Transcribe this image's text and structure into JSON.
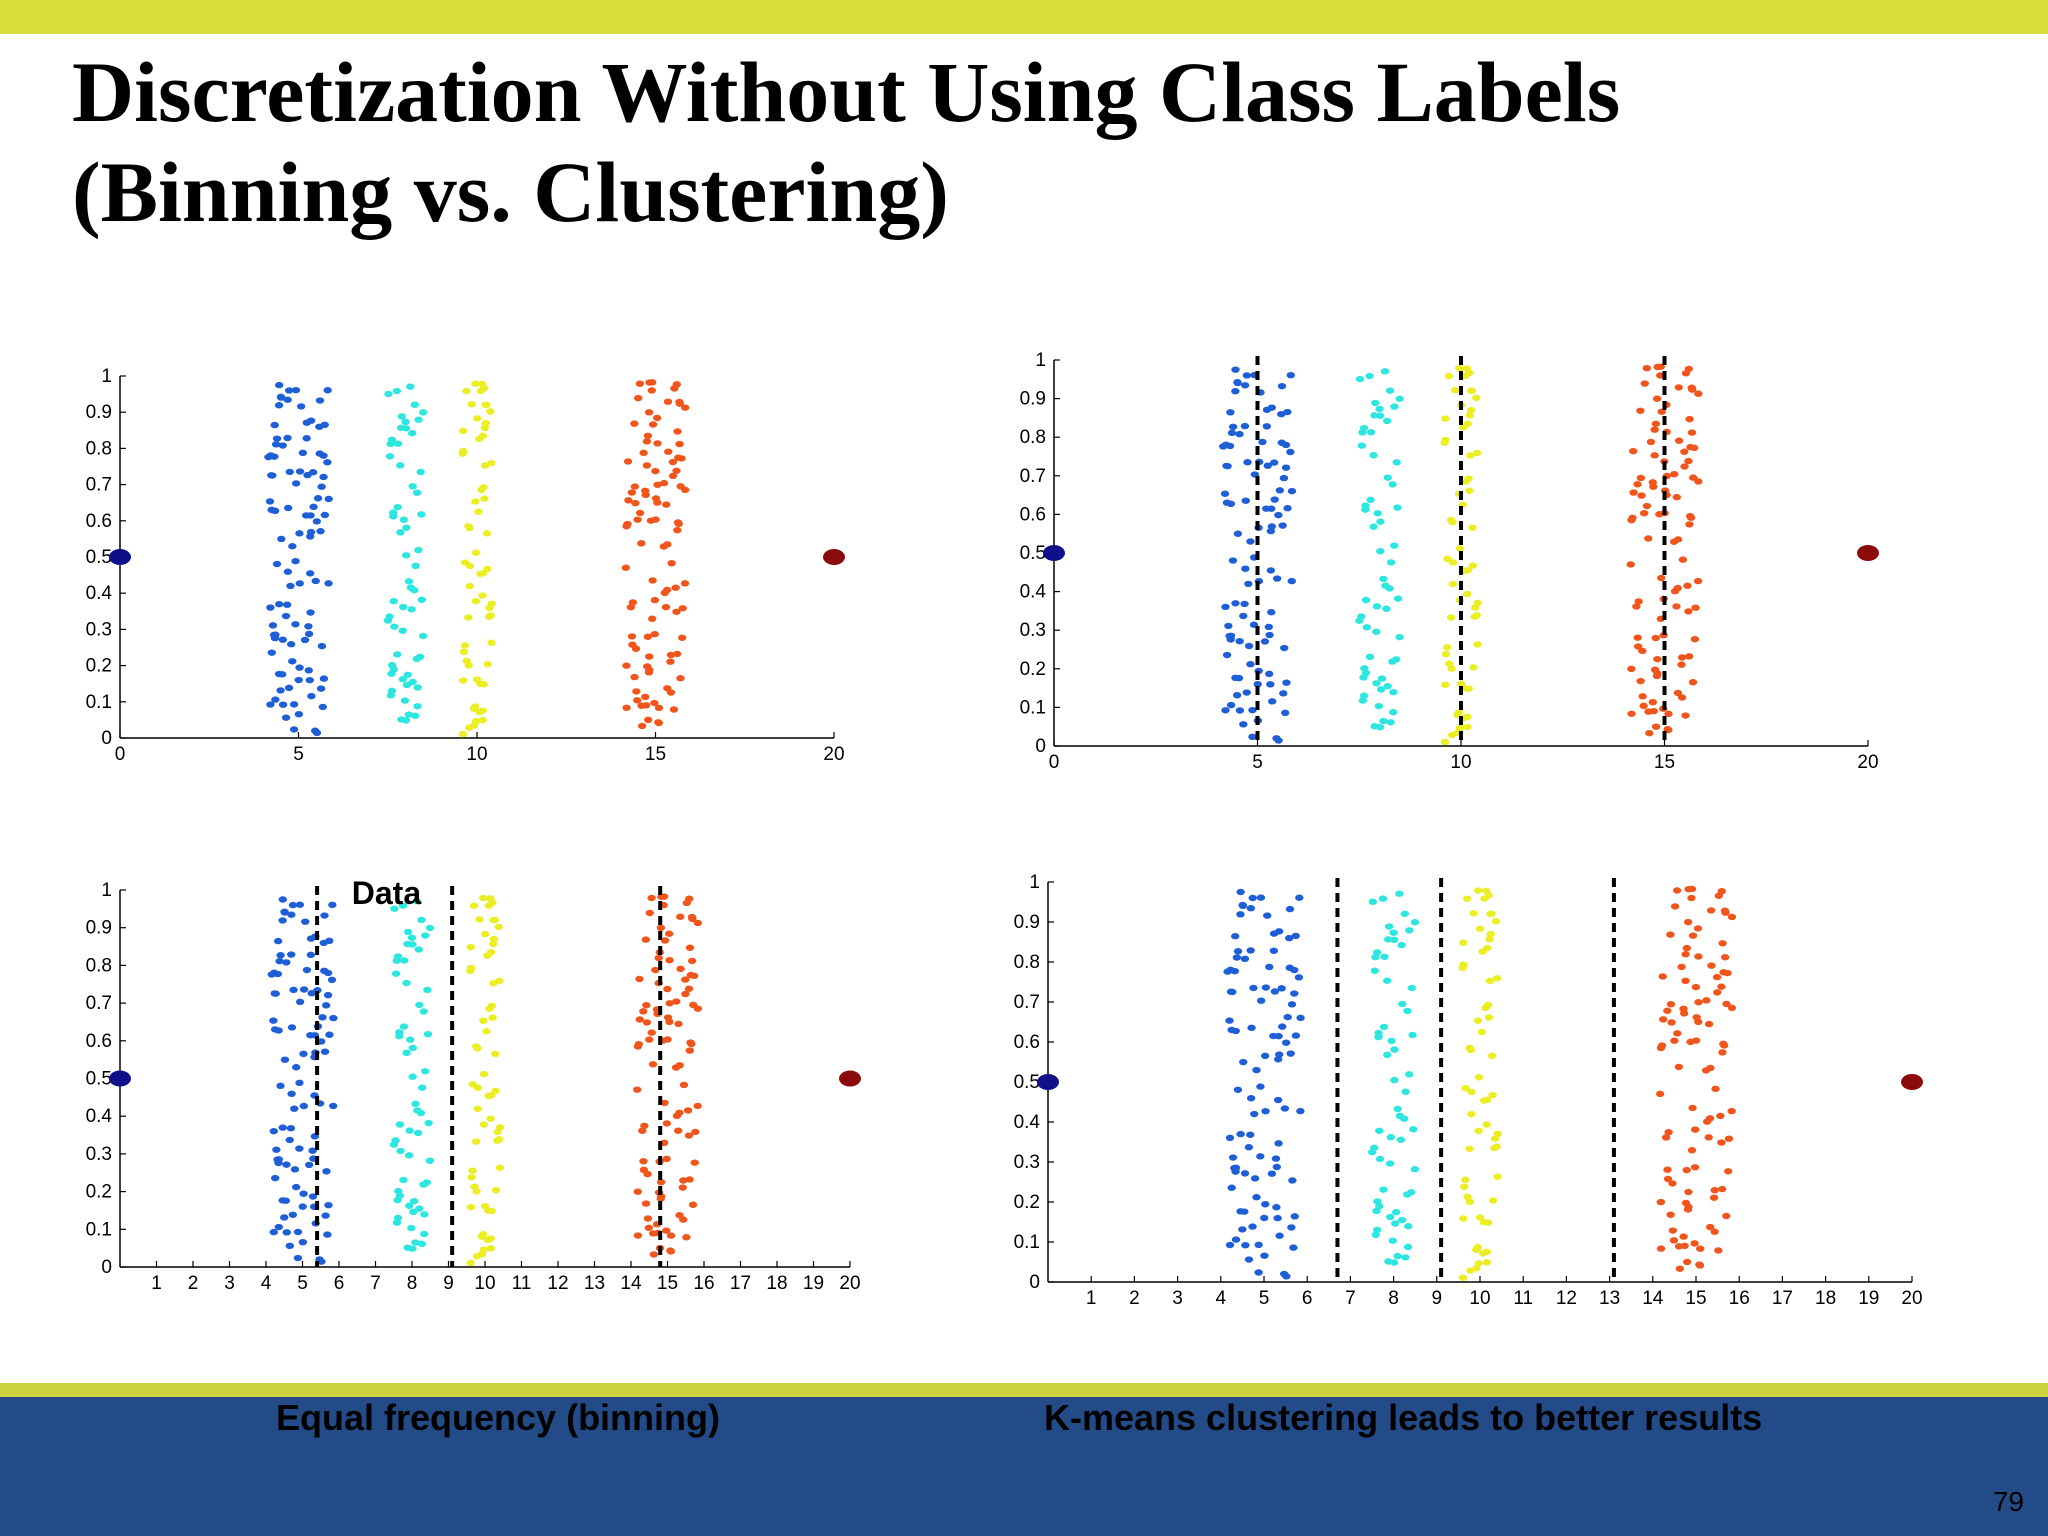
{
  "slide": {
    "title_line1": "Discretization Without Using Class Labels",
    "title_line2": "(Binning vs. Clustering)",
    "caption_left": "Equal frequency (binning)",
    "caption_right": "K-means clustering leads to better results",
    "page_number": "79",
    "colors": {
      "top_bar": "#d9df3a",
      "footer_line": "#cdd440",
      "footer_bg": "#234b87"
    }
  },
  "chart_data": [
    {
      "type": "scatter",
      "annotation": "",
      "xlim": [
        0,
        20
      ],
      "ylim": [
        0,
        1
      ],
      "xticks": [
        0,
        5,
        10,
        15,
        20
      ],
      "yticks": [
        0,
        0.1,
        0.2,
        0.3,
        0.4,
        0.5,
        0.6,
        0.7,
        0.8,
        0.9,
        1
      ],
      "cutpoints": [],
      "series": [
        {
          "color": "#1f5fd6",
          "points": "cluster",
          "x_center": 5,
          "x_spread": 1,
          "count": 100
        },
        {
          "color": "#2ee6e0",
          "points": "cluster",
          "x_center": 8,
          "x_spread": 0.6,
          "count": 60
        },
        {
          "color": "#ebee22",
          "points": "cluster",
          "x_center": 10,
          "x_spread": 0.5,
          "count": 60
        },
        {
          "color": "#f0561c",
          "points": "cluster",
          "x_center": 15,
          "x_spread": 1,
          "count": 100
        },
        {
          "color": "#0f0f8a",
          "x": [
            0
          ],
          "y": [
            0.5
          ],
          "outlier": true
        },
        {
          "color": "#8b0a0a",
          "x": [
            20
          ],
          "y": [
            0.5
          ],
          "outlier": true
        }
      ]
    },
    {
      "type": "scatter",
      "annotation": "",
      "xlim": [
        0,
        20
      ],
      "ylim": [
        0,
        1
      ],
      "xticks": [
        0,
        5,
        10,
        15,
        20
      ],
      "yticks": [
        0,
        0.1,
        0.2,
        0.3,
        0.4,
        0.5,
        0.6,
        0.7,
        0.8,
        0.9,
        1
      ],
      "cutpoints": [
        5,
        10,
        15
      ],
      "series": [
        {
          "color": "#1f5fd6",
          "points": "cluster",
          "x_center": 5,
          "x_spread": 1,
          "count": 100
        },
        {
          "color": "#2ee6e0",
          "points": "cluster",
          "x_center": 8,
          "x_spread": 0.6,
          "count": 60
        },
        {
          "color": "#ebee22",
          "points": "cluster",
          "x_center": 10,
          "x_spread": 0.5,
          "count": 60
        },
        {
          "color": "#f0561c",
          "points": "cluster",
          "x_center": 15,
          "x_spread": 1,
          "count": 100
        },
        {
          "color": "#0f0f8a",
          "x": [
            0
          ],
          "y": [
            0.5
          ],
          "outlier": true
        },
        {
          "color": "#8b0a0a",
          "x": [
            20
          ],
          "y": [
            0.5
          ],
          "outlier": true
        }
      ]
    },
    {
      "type": "scatter",
      "annotation": "Data",
      "xlim": [
        0,
        20
      ],
      "ylim": [
        0,
        1
      ],
      "xticks": [
        1,
        2,
        3,
        4,
        5,
        6,
        7,
        8,
        9,
        10,
        11,
        12,
        13,
        14,
        15,
        16,
        17,
        18,
        19,
        20
      ],
      "yticks": [
        0,
        0.1,
        0.2,
        0.3,
        0.4,
        0.5,
        0.6,
        0.7,
        0.8,
        0.9,
        1
      ],
      "cutpoints": [
        5.4,
        9.1,
        14.8
      ],
      "series": [
        {
          "color": "#1f5fd6",
          "points": "cluster",
          "x_center": 5,
          "x_spread": 1,
          "count": 100
        },
        {
          "color": "#2ee6e0",
          "points": "cluster",
          "x_center": 8,
          "x_spread": 0.6,
          "count": 60
        },
        {
          "color": "#ebee22",
          "points": "cluster",
          "x_center": 10,
          "x_spread": 0.5,
          "count": 60
        },
        {
          "color": "#f0561c",
          "points": "cluster",
          "x_center": 15,
          "x_spread": 1,
          "count": 100
        },
        {
          "color": "#0f0f8a",
          "x": [
            0
          ],
          "y": [
            0.5
          ],
          "outlier": true
        },
        {
          "color": "#8b0a0a",
          "x": [
            20
          ],
          "y": [
            0.5
          ],
          "outlier": true
        }
      ]
    },
    {
      "type": "scatter",
      "annotation": "",
      "xlim": [
        0,
        20
      ],
      "ylim": [
        0,
        1
      ],
      "xticks": [
        1,
        2,
        3,
        4,
        5,
        6,
        7,
        8,
        9,
        10,
        11,
        12,
        13,
        14,
        15,
        16,
        17,
        18,
        19,
        20
      ],
      "yticks": [
        0,
        0.1,
        0.2,
        0.3,
        0.4,
        0.5,
        0.6,
        0.7,
        0.8,
        0.9,
        1
      ],
      "cutpoints": [
        6.7,
        9.1,
        13.1
      ],
      "series": [
        {
          "color": "#1f5fd6",
          "points": "cluster",
          "x_center": 5,
          "x_spread": 1,
          "count": 100
        },
        {
          "color": "#2ee6e0",
          "points": "cluster",
          "x_center": 8,
          "x_spread": 0.6,
          "count": 60
        },
        {
          "color": "#ebee22",
          "points": "cluster",
          "x_center": 10,
          "x_spread": 0.5,
          "count": 60
        },
        {
          "color": "#f0561c",
          "points": "cluster",
          "x_center": 15,
          "x_spread": 1,
          "count": 100
        },
        {
          "color": "#0f0f8a",
          "x": [
            0
          ],
          "y": [
            0.5
          ],
          "outlier": true
        },
        {
          "color": "#8b0a0a",
          "x": [
            20
          ],
          "y": [
            0.5
          ],
          "outlier": true
        }
      ]
    }
  ]
}
